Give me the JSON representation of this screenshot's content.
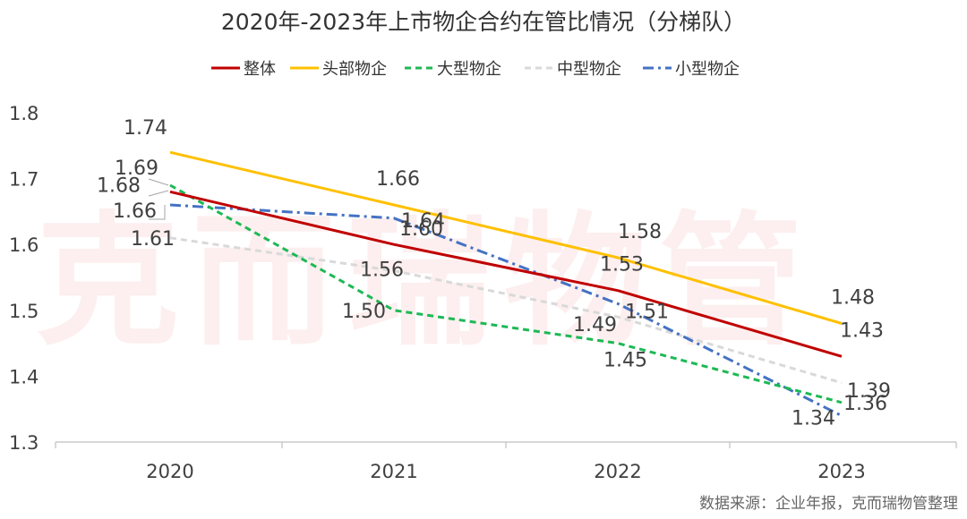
{
  "chart_data": {
    "type": "line",
    "title": "2020年-2023年上市物企合约在管比情况（分梯队）",
    "categories": [
      "2020",
      "2021",
      "2022",
      "2023"
    ],
    "ylim": [
      1.3,
      1.8
    ],
    "yticks": [
      "1.3",
      "1.4",
      "1.5",
      "1.6",
      "1.7",
      "1.8"
    ],
    "legend_position": "top",
    "grid": false,
    "series": [
      {
        "name": "整体",
        "color": "#c00000",
        "dash": "solid",
        "values": [
          1.68,
          1.6,
          1.53,
          1.43
        ]
      },
      {
        "name": "头部物企",
        "color": "#ffc000",
        "dash": "solid",
        "values": [
          1.74,
          1.66,
          1.58,
          1.48
        ]
      },
      {
        "name": "大型物企",
        "color": "#1db954",
        "dash": "dashed",
        "values": [
          1.69,
          1.5,
          1.45,
          1.36
        ]
      },
      {
        "name": "中型物企",
        "color": "#d9d9d9",
        "dash": "dashed",
        "values": [
          1.61,
          1.56,
          1.49,
          1.39
        ]
      },
      {
        "name": "小型物企",
        "color": "#4472c4",
        "dash": "dashdot",
        "values": [
          1.66,
          1.64,
          1.51,
          1.34
        ]
      }
    ],
    "labels": [
      [
        "1.68",
        "1.60",
        "1.53",
        "1.43"
      ],
      [
        "1.74",
        "1.66",
        "1.58",
        "1.48"
      ],
      [
        "1.69",
        "1.50",
        "1.45",
        "1.36"
      ],
      [
        "1.61",
        "1.56",
        "1.49",
        "1.39"
      ],
      [
        "1.66",
        "1.64",
        "1.51",
        "1.34"
      ]
    ]
  },
  "source": "数据来源：企业年报，克而瑞物管整理",
  "watermark": "克而瑞物管"
}
